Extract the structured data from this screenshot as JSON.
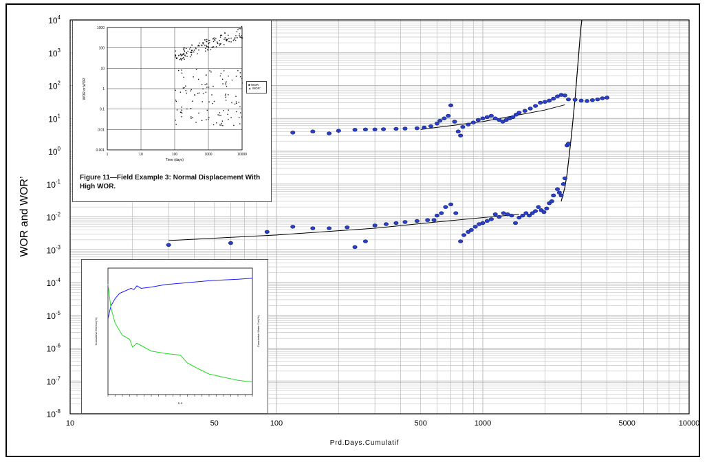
{
  "chart_data": [
    {
      "type": "scatter",
      "title": "",
      "xlabel": "Prd.Days.Cumulatif",
      "ylabel": "WOR and WOR’",
      "xscale": "log",
      "yscale": "log",
      "xlim": [
        10,
        10000
      ],
      "ylim": [
        1e-08,
        10000.0
      ],
      "x_ticks": [
        "10",
        "50",
        "100",
        "500",
        "1000",
        "5000",
        "10000"
      ],
      "x_tick_values": [
        10,
        50,
        100,
        500,
        1000,
        5000,
        10000
      ],
      "y_ticks": [
        {
          "base": "10",
          "exp": "-8"
        },
        {
          "base": "10",
          "exp": "-7"
        },
        {
          "base": "10",
          "exp": "-6"
        },
        {
          "base": "10",
          "exp": "-5"
        },
        {
          "base": "10",
          "exp": "-4"
        },
        {
          "base": "10",
          "exp": "-3"
        },
        {
          "base": "10",
          "exp": "-2"
        },
        {
          "base": "10",
          "exp": "-1"
        },
        {
          "base": "10",
          "exp": "0"
        },
        {
          "base": "10",
          "exp": "1"
        },
        {
          "base": "10",
          "exp": "2"
        },
        {
          "base": "10",
          "exp": "3"
        },
        {
          "base": "10",
          "exp": "4"
        }
      ],
      "grid": true,
      "colors": {
        "points": "#2a3fc8",
        "fit": "#000000",
        "grid": "#b9b9b9"
      },
      "series": [
        {
          "values": [
            [
              90,
              3.5
            ],
            [
              120,
              3.7
            ],
            [
              150,
              4.0
            ],
            [
              180,
              3.5
            ],
            [
              200,
              4.2
            ],
            [
              240,
              4.5
            ],
            [
              270,
              4.6
            ],
            [
              300,
              4.6
            ],
            [
              330,
              4.7
            ],
            [
              380,
              4.8
            ],
            [
              420,
              4.9
            ],
            [
              480,
              5.0
            ],
            [
              520,
              5.3
            ],
            [
              560,
              5.8
            ],
            [
              600,
              7.0
            ],
            [
              620,
              8.5
            ],
            [
              650,
              10
            ],
            [
              680,
              12
            ],
            [
              700,
              25
            ],
            [
              730,
              8
            ],
            [
              760,
              4.0
            ],
            [
              780,
              3.0
            ],
            [
              800,
              5.5
            ],
            [
              850,
              6.5
            ],
            [
              900,
              7.5
            ],
            [
              950,
              9
            ],
            [
              1000,
              10
            ],
            [
              1050,
              11
            ],
            [
              1100,
              12
            ],
            [
              1150,
              10
            ],
            [
              1200,
              9
            ],
            [
              1250,
              8
            ],
            [
              1300,
              9
            ],
            [
              1350,
              10
            ],
            [
              1400,
              11
            ],
            [
              1450,
              13
            ],
            [
              1500,
              15
            ],
            [
              1600,
              17
            ],
            [
              1700,
              20
            ],
            [
              1800,
              24
            ],
            [
              1900,
              30
            ],
            [
              2000,
              32
            ],
            [
              2100,
              35
            ],
            [
              2200,
              40
            ],
            [
              2300,
              47
            ],
            [
              2400,
              52
            ],
            [
              2500,
              50
            ],
            [
              2600,
              38
            ],
            [
              2800,
              37
            ],
            [
              3000,
              35
            ],
            [
              3200,
              34
            ],
            [
              3400,
              36
            ],
            [
              3600,
              38
            ],
            [
              3800,
              41
            ],
            [
              4000,
              43
            ]
          ]
        },
        {
          "values": [
            [
              30,
              0.0014
            ],
            [
              60,
              0.0016
            ],
            [
              90,
              0.0035
            ],
            [
              120,
              0.005
            ],
            [
              150,
              0.0045
            ],
            [
              180,
              0.0045
            ],
            [
              220,
              0.0048
            ],
            [
              240,
              0.0012
            ],
            [
              270,
              0.0018
            ],
            [
              300,
              0.0055
            ],
            [
              340,
              0.006
            ],
            [
              380,
              0.0065
            ],
            [
              420,
              0.007
            ],
            [
              480,
              0.0075
            ],
            [
              540,
              0.008
            ],
            [
              580,
              0.008
            ],
            [
              600,
              0.011
            ],
            [
              630,
              0.013
            ],
            [
              660,
              0.02
            ],
            [
              700,
              0.024
            ],
            [
              740,
              0.013
            ],
            [
              780,
              0.0018
            ],
            [
              810,
              0.0028
            ],
            [
              850,
              0.0035
            ],
            [
              880,
              0.004
            ],
            [
              920,
              0.005
            ],
            [
              960,
              0.006
            ],
            [
              1000,
              0.0065
            ],
            [
              1050,
              0.0075
            ],
            [
              1100,
              0.0085
            ],
            [
              1150,
              0.012
            ],
            [
              1200,
              0.01
            ],
            [
              1260,
              0.013
            ],
            [
              1320,
              0.012
            ],
            [
              1380,
              0.011
            ],
            [
              1440,
              0.0065
            ],
            [
              1500,
              0.0095
            ],
            [
              1560,
              0.011
            ],
            [
              1620,
              0.013
            ],
            [
              1680,
              0.011
            ],
            [
              1740,
              0.013
            ],
            [
              1800,
              0.015
            ],
            [
              1860,
              0.02
            ],
            [
              1920,
              0.016
            ],
            [
              1980,
              0.014
            ],
            [
              2040,
              0.018
            ],
            [
              2100,
              0.026
            ],
            [
              2160,
              0.03
            ],
            [
              2200,
              0.045
            ],
            [
              2300,
              0.07
            ],
            [
              2350,
              0.055
            ],
            [
              2400,
              0.045
            ],
            [
              2460,
              0.1
            ],
            [
              2500,
              0.15
            ],
            [
              2560,
              1.5
            ],
            [
              2600,
              1.7
            ]
          ]
        }
      ],
      "fit_lines": [
        [
          [
            500,
            4.6
          ],
          [
            1000,
            8
          ],
          [
            2000,
            18
          ],
          [
            2500,
            26
          ]
        ],
        [
          [
            30,
            0.0019
          ],
          [
            100,
            0.0028
          ],
          [
            300,
            0.0045
          ],
          [
            600,
            0.007
          ],
          [
            1000,
            0.0095
          ],
          [
            1500,
            0.012
          ]
        ]
      ],
      "steep_curve": [
        [
          2400,
          0.03
        ],
        [
          2500,
          0.08
        ],
        [
          2560,
          0.2
        ],
        [
          2620,
          0.7
        ],
        [
          2680,
          2.5
        ],
        [
          2740,
          10
        ],
        [
          2800,
          40
        ],
        [
          2860,
          200
        ],
        [
          2920,
          1000
        ],
        [
          2980,
          5000
        ],
        [
          3020,
          10000
        ]
      ]
    },
    {
      "type": "scatter",
      "caption": "Figure 11—Field Example 3:  Normal Displacement With High WOR.",
      "xlabel": "Time (days)",
      "ylabel": "WOR or WOR’",
      "xscale": "log",
      "yscale": "log",
      "xlim": [
        1,
        10000
      ],
      "ylim": [
        0.001,
        1000
      ],
      "x_ticks": [
        "1",
        "10",
        "100",
        "1000",
        "10000"
      ],
      "y_ticks": [
        "0.001",
        "0.01",
        "0.1",
        "1",
        "10",
        "100",
        "1000"
      ],
      "legend": [
        "WOR",
        "WOR’"
      ],
      "legend_position": "right"
    },
    {
      "type": "line",
      "xlabel": "D.S",
      "ylabel_left": "Cumulative Oil Cut (%)",
      "ylabel_right": "Cumulative Water Cut (%)",
      "series": [
        {
          "values": [
            [
              0.0,
              30
            ],
            [
              0.02,
              35
            ],
            [
              0.05,
              38
            ],
            [
              0.08,
              40
            ],
            [
              0.12,
              41
            ],
            [
              0.16,
              42
            ],
            [
              0.18,
              41.5
            ],
            [
              0.2,
              43
            ],
            [
              0.23,
              42
            ],
            [
              0.3,
              42.5
            ],
            [
              0.4,
              43.5
            ],
            [
              0.5,
              44
            ],
            [
              0.6,
              44.5
            ],
            [
              0.7,
              45
            ],
            [
              0.8,
              45.3
            ],
            [
              0.9,
              45.6
            ],
            [
              1.0,
              46
            ]
          ]
        },
        {
          "values": [
            [
              0.0,
              14
            ],
            [
              0.02,
              11
            ],
            [
              0.05,
              9
            ],
            [
              0.1,
              7.5
            ],
            [
              0.15,
              7.0
            ],
            [
              0.17,
              6.0
            ],
            [
              0.2,
              6.5
            ],
            [
              0.25,
              6.0
            ],
            [
              0.3,
              5.5
            ],
            [
              0.4,
              5.2
            ],
            [
              0.5,
              5.0
            ],
            [
              0.55,
              4.0
            ],
            [
              0.6,
              3.5
            ],
            [
              0.7,
              2.6
            ],
            [
              0.8,
              2.2
            ],
            [
              0.9,
              1.8
            ],
            [
              1.0,
              1.6
            ]
          ]
        }
      ],
      "colors": {
        "top": "#1a1aff",
        "bottom": "#22dd22"
      }
    }
  ]
}
